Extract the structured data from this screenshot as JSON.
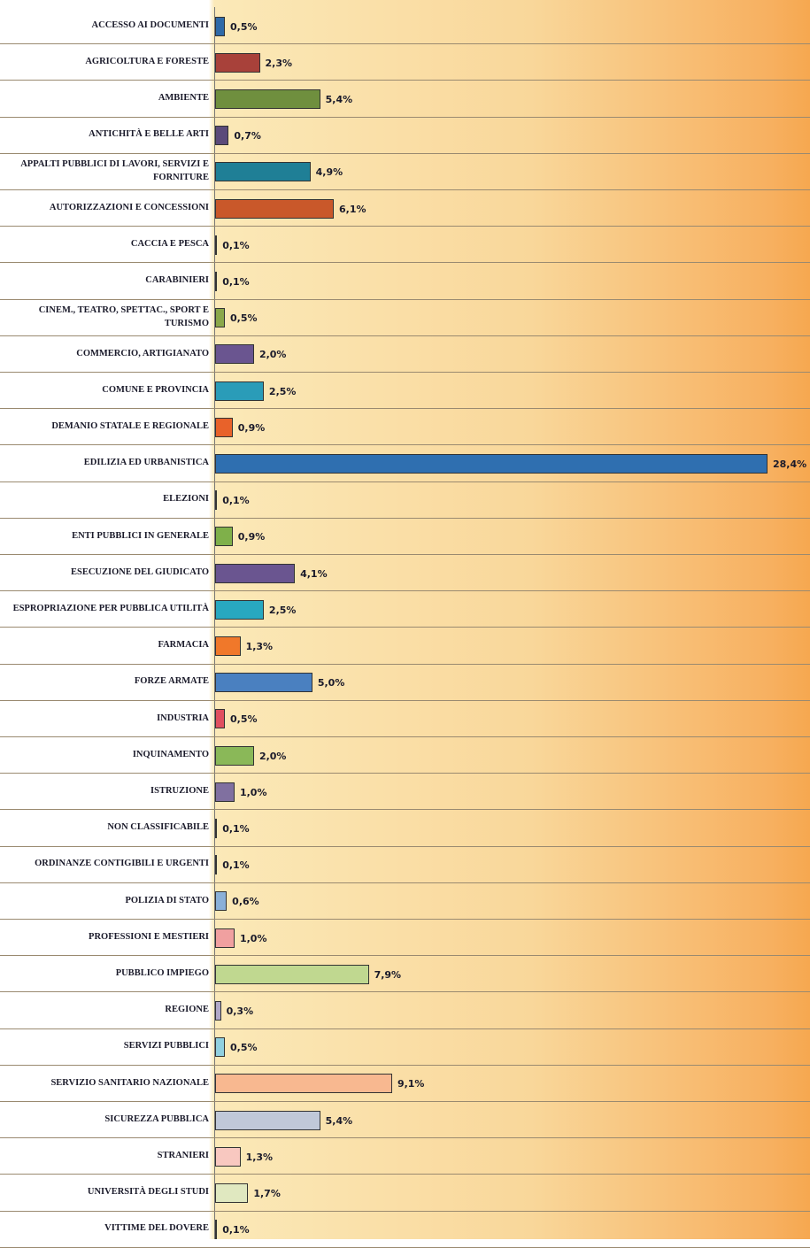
{
  "chart_data": {
    "type": "bar",
    "orientation": "horizontal",
    "categories": [
      "ACCESSO AI DOCUMENTI",
      "AGRICOLTURA E FORESTE",
      "AMBIENTE",
      "ANTICHITÀ E BELLE ARTI",
      "APPALTI PUBBLICI DI LAVORI, SERVIZI E FORNITURE",
      "AUTORIZZAZIONI E CONCESSIONI",
      "CACCIA E PESCA",
      "CARABINIERI",
      "CINEM., TEATRO, SPETTAC., SPORT E TURISMO",
      "COMMERCIO, ARTIGIANATO",
      "COMUNE E PROVINCIA",
      "DEMANIO STATALE E REGIONALE",
      "EDILIZIA ED URBANISTICA",
      "ELEZIONI",
      "ENTI PUBBLICI IN GENERALE",
      "ESECUZIONE DEL GIUDICATO",
      "ESPROPRIAZIONE PER PUBBLICA UTILITÀ",
      "FARMACIA",
      "FORZE ARMATE",
      "INDUSTRIA",
      "INQUINAMENTO",
      "ISTRUZIONE",
      "NON CLASSIFICABILE",
      "ORDINANZE CONTIGIBILI E URGENTI",
      "POLIZIA DI STATO",
      "PROFESSIONI E MESTIERI",
      "PUBBLICO IMPIEGO",
      "REGIONE",
      "SERVIZI PUBBLICI",
      "SERVIZIO SANITARIO NAZIONALE",
      "SICUREZZA PUBBLICA",
      "STRANIERI",
      "UNIVERSITÀ DEGLI STUDI",
      "VITTIME DEL DOVERE"
    ],
    "values": [
      0.5,
      2.3,
      5.4,
      0.7,
      4.9,
      6.1,
      0.1,
      0.1,
      0.5,
      2.0,
      2.5,
      0.9,
      28.4,
      0.1,
      0.9,
      4.1,
      2.5,
      1.3,
      5.0,
      0.5,
      2.0,
      1.0,
      0.1,
      0.1,
      0.6,
      1.0,
      7.9,
      0.3,
      0.5,
      9.1,
      5.4,
      1.3,
      1.7,
      0.1
    ],
    "value_labels": [
      "0,5%",
      "2,3%",
      "5,4%",
      "0,7%",
      "4,9%",
      "6,1%",
      "0,1%",
      "0,1%",
      "0,5%",
      "2,0%",
      "2,5%",
      "0,9%",
      "28,4%",
      "0,1%",
      "0,9%",
      "4,1%",
      "2,5%",
      "1,3%",
      "5,0%",
      "0,5%",
      "2,0%",
      "1,0%",
      "0,1%",
      "0,1%",
      "0,6%",
      "1,0%",
      "7,9%",
      "0,3%",
      "0,5%",
      "9,1%",
      "5,4%",
      "1,3%",
      "1,7%",
      "0,1%"
    ],
    "colors": [
      "#2f6aa8",
      "#a8413a",
      "#6f8f3e",
      "#5b4a7a",
      "#1f7f96",
      "#c9582a",
      "#2f6aa8",
      "#a8413a",
      "#8aa84a",
      "#6a5590",
      "#2a9cb8",
      "#e8622a",
      "#2f6fb0",
      "#a8413a",
      "#7fb04a",
      "#6a5590",
      "#28a8c0",
      "#f0782a",
      "#4a80c0",
      "#e05060",
      "#8ab858",
      "#8070a0",
      "#40b8d0",
      "#f08040",
      "#8ab0d8",
      "#f0a0a0",
      "#c0d890",
      "#b0a8c8",
      "#90d0e0",
      "#f8b890",
      "#c0c8d8",
      "#f8c8c0",
      "#e0e8c0",
      "#c8c0dc"
    ],
    "xlim": [
      0,
      28.4
    ],
    "grid": true
  }
}
